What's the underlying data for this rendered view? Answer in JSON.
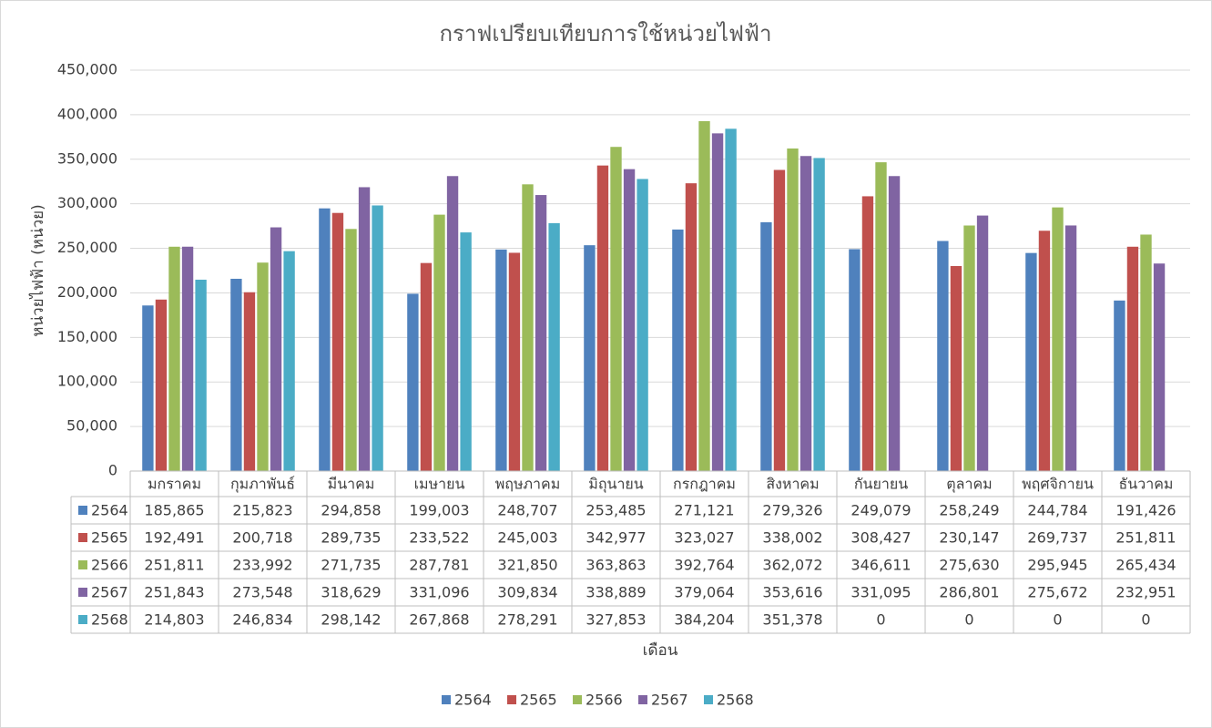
{
  "chart_data": {
    "type": "bar",
    "title": "กราฟเปรียบเทียบการใช้หน่วยไฟฟ้า",
    "x_label": "เดือน",
    "y_label": "หน่วยไฟฟ้า (หน่วย)",
    "categories": [
      "มกราคม",
      "กุมภาพันธ์",
      "มีนาคม",
      "เมษายน",
      "พฤษภาคม",
      "มิถุนายน",
      "กรกฎาคม",
      "สิงหาคม",
      "กันยายน",
      "ตุลาคม",
      "พฤศจิกายน",
      "ธันวาคม"
    ],
    "series": [
      {
        "name": "2564",
        "color": "#4f81bd",
        "values": [
          185865,
          215823,
          294858,
          199003,
          248707,
          253485,
          271121,
          279326,
          249079,
          258249,
          244784,
          191426
        ],
        "value_labels": [
          "185,865",
          "215,823",
          "294,858",
          "199,003",
          "248,707",
          "253,485",
          "271,121",
          "279,326",
          "249,079",
          "258,249",
          "244,784",
          "191,426"
        ]
      },
      {
        "name": "2565",
        "color": "#c0504d",
        "values": [
          192491,
          200718,
          289735,
          233522,
          245003,
          342977,
          323027,
          338002,
          308427,
          230147,
          269737,
          251811
        ],
        "value_labels": [
          "192,491",
          "200,718",
          "289,735",
          "233,522",
          "245,003",
          "342,977",
          "323,027",
          "338,002",
          "308,427",
          "230,147",
          "269,737",
          "251,811"
        ]
      },
      {
        "name": "2566",
        "color": "#9bbb59",
        "values": [
          251811,
          233992,
          271735,
          287781,
          321850,
          363863,
          392764,
          362072,
          346611,
          275630,
          295945,
          265434
        ],
        "value_labels": [
          "251,811",
          "233,992",
          "271,735",
          "287,781",
          "321,850",
          "363,863",
          "392,764",
          "362,072",
          "346,611",
          "275,630",
          "295,945",
          "265,434"
        ]
      },
      {
        "name": "2567",
        "color": "#8064a2",
        "values": [
          251843,
          273548,
          318629,
          331096,
          309834,
          338889,
          379064,
          353616,
          331095,
          286801,
          275672,
          232951
        ],
        "value_labels": [
          "251,843",
          "273,548",
          "318,629",
          "331,096",
          "309,834",
          "338,889",
          "379,064",
          "353,616",
          "331,095",
          "286,801",
          "275,672",
          "232,951"
        ]
      },
      {
        "name": "2568",
        "color": "#4bacc6",
        "values": [
          214803,
          246834,
          298142,
          267868,
          278291,
          327853,
          384204,
          351378,
          0,
          0,
          0,
          0
        ],
        "value_labels": [
          "214,803",
          "246,834",
          "298,142",
          "267,868",
          "278,291",
          "327,853",
          "384,204",
          "351,378",
          "0",
          "0",
          "0",
          "0"
        ]
      }
    ],
    "ylim": [
      0,
      450000
    ],
    "yticks": [
      0,
      {
        "value": 50000,
        "label": "50,000"
      },
      {
        "value": 100000,
        "label": "100,000"
      },
      {
        "value": 150000,
        "label": "150,000"
      },
      {
        "value": 200000,
        "label": "200,000"
      },
      {
        "value": 250000,
        "label": "250,000"
      },
      {
        "value": 300000,
        "label": "300,000"
      },
      {
        "value": 350000,
        "label": "350,000"
      },
      {
        "value": 400000,
        "label": "400,000"
      },
      {
        "value": 450000,
        "label": "450,000"
      }
    ],
    "grid": true,
    "legend": "bottom"
  }
}
